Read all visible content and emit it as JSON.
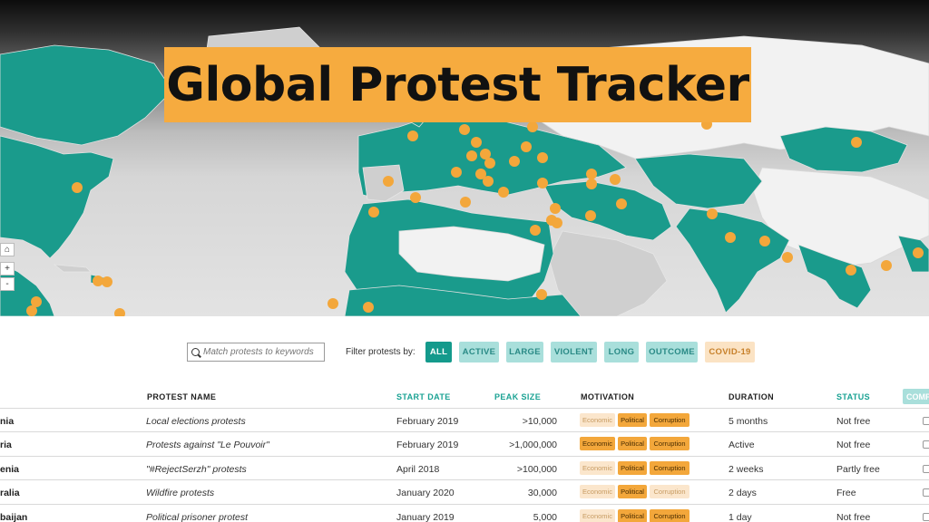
{
  "banner": {
    "title": "Global Protest Tracker"
  },
  "map_controls": {
    "home": "⌂",
    "zoom_in": "+",
    "zoom_out": "-"
  },
  "search": {
    "placeholder": "Match protests to keywords",
    "value": ""
  },
  "filters": {
    "label": "Filter protests by:",
    "buttons": [
      "ALL",
      "ACTIVE",
      "LARGE",
      "VIOLENT",
      "LONG",
      "OUTCOME",
      "COVID-19"
    ],
    "selected": "ALL"
  },
  "table": {
    "headers": {
      "name": "PROTEST NAME",
      "start": "START DATE",
      "peak": "PEAK SIZE",
      "motivation": "MOTIVATION",
      "duration": "DURATION",
      "status": "STATUS",
      "compare": "COMP"
    },
    "motivation_labels": [
      "Economic",
      "Political",
      "Corruption"
    ],
    "rows": [
      {
        "country": "nia",
        "name": "Local elections protests",
        "start": "February 2019",
        "peak": ">10,000",
        "motivations": [
          false,
          true,
          true
        ],
        "duration": "5 months",
        "status": "Not free"
      },
      {
        "country": "ria",
        "name": "Protests against \"Le Pouvoir\"",
        "start": "February 2019",
        "peak": ">1,000,000",
        "motivations": [
          true,
          true,
          true
        ],
        "duration": "Active",
        "status": "Not free"
      },
      {
        "country": "enia",
        "name": "\"#RejectSerzh\" protests",
        "start": "April 2018",
        "peak": ">100,000",
        "motivations": [
          false,
          true,
          true
        ],
        "duration": "2 weeks",
        "status": "Partly free"
      },
      {
        "country": "ralia",
        "name": "Wildfire protests",
        "start": "January 2020",
        "peak": "30,000",
        "motivations": [
          false,
          true,
          false
        ],
        "duration": "2 days",
        "status": "Free"
      },
      {
        "country": "baijan",
        "name": "Political prisoner protest",
        "start": "January 2019",
        "peak": "5,000",
        "motivations": [
          false,
          true,
          true
        ],
        "duration": "1 day",
        "status": "Not free"
      }
    ]
  },
  "colors": {
    "accent": "#149a8c",
    "banner": "#f6ab3f",
    "dot": "#f3a73b",
    "teal_light": "#a9dfdb"
  }
}
